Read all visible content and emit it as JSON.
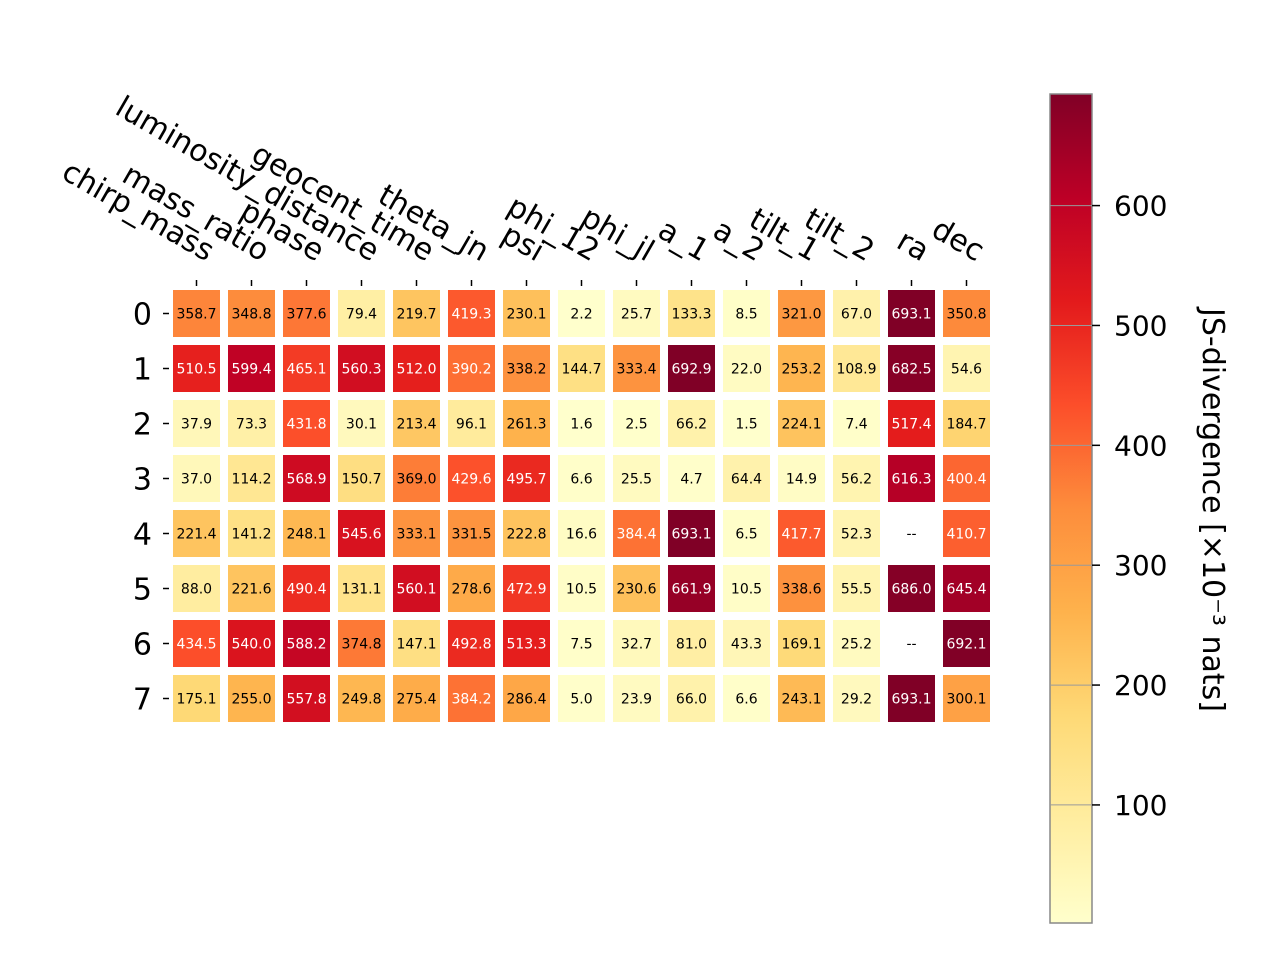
{
  "chart_data": {
    "type": "heatmap",
    "columns": [
      "chirp_mass",
      "mass_ratio",
      "phase",
      "luminosity_distance",
      "geocent_time",
      "theta_jn",
      "psi",
      "phi_12",
      "phi_jl",
      "a_1",
      "a_2",
      "tilt_1",
      "tilt_2",
      "ra",
      "dec"
    ],
    "rows": [
      "0",
      "1",
      "2",
      "3",
      "4",
      "5",
      "6",
      "7"
    ],
    "values": [
      [
        358.7,
        348.8,
        377.6,
        79.4,
        219.7,
        419.3,
        230.1,
        2.2,
        25.7,
        133.3,
        8.5,
        321.0,
        67.0,
        693.1,
        350.8
      ],
      [
        510.5,
        599.4,
        465.1,
        560.3,
        512.0,
        390.2,
        338.2,
        144.7,
        333.4,
        692.9,
        22.0,
        253.2,
        108.9,
        682.5,
        54.6
      ],
      [
        37.9,
        73.3,
        431.8,
        30.1,
        213.4,
        96.1,
        261.3,
        1.6,
        2.5,
        66.2,
        1.5,
        224.1,
        7.4,
        517.4,
        184.7
      ],
      [
        37.0,
        114.2,
        568.9,
        150.7,
        369.0,
        429.6,
        495.7,
        6.6,
        25.5,
        4.7,
        64.4,
        14.9,
        56.2,
        616.3,
        400.4
      ],
      [
        221.4,
        141.2,
        248.1,
        545.6,
        333.1,
        331.5,
        222.8,
        16.6,
        384.4,
        693.1,
        6.5,
        417.7,
        52.3,
        null,
        410.7
      ],
      [
        88.0,
        221.6,
        490.4,
        131.1,
        560.1,
        278.6,
        472.9,
        10.5,
        230.6,
        661.9,
        10.5,
        338.6,
        55.5,
        686.0,
        645.4
      ],
      [
        434.5,
        540.0,
        588.2,
        374.8,
        147.1,
        492.8,
        513.3,
        7.5,
        32.7,
        81.0,
        43.3,
        169.1,
        25.2,
        null,
        692.1
      ],
      [
        175.1,
        255.0,
        557.8,
        249.8,
        275.4,
        384.2,
        286.4,
        5.0,
        23.9,
        66.0,
        6.6,
        243.1,
        29.2,
        693.1,
        300.1
      ]
    ],
    "missing_label": "--",
    "colormap": "YlOrRd",
    "colormap_stops": [
      "#ffffcc",
      "#ffeda0",
      "#fed976",
      "#feb24c",
      "#fd8d3c",
      "#fc4e2a",
      "#e31a1c",
      "#bd0026",
      "#800026"
    ],
    "vmin": 1.5,
    "vmax": 693.1,
    "colorbar": {
      "label": "JS-divergence [×10⁻³ nats]",
      "ticks": [
        100,
        200,
        300,
        400,
        500,
        600
      ],
      "tick_labels": [
        "100",
        "200",
        "300",
        "400",
        "500",
        "600"
      ]
    },
    "title": "",
    "xlabel": "",
    "ylabel": ""
  }
}
